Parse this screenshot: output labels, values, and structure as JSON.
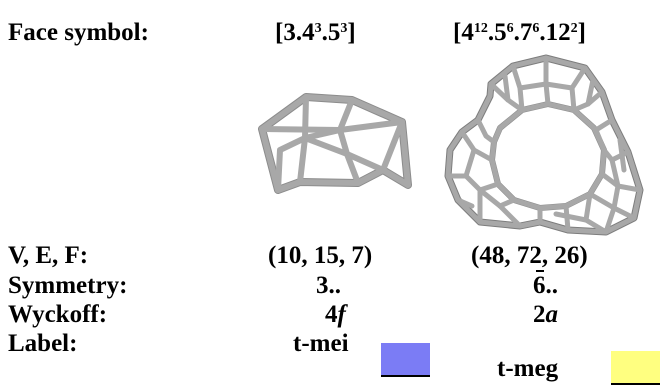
{
  "rows": {
    "face": {
      "label": "Face symbol:",
      "mei": {
        "base": "[3.4",
        "e1": "3",
        "m1": ".5",
        "e2": "3",
        "tail": "]"
      },
      "meg": {
        "base": "[4",
        "e1": "12",
        "m1": ".5",
        "e2": "6",
        "m2": ".7",
        "e3": "6",
        "m3": ".12",
        "e4": "2",
        "tail": "]"
      }
    },
    "vef": {
      "label": "V, E, F:",
      "mei": "(10, 15, 7)",
      "meg": "(48, 72, 26)"
    },
    "symmetry": {
      "label": "Symmetry:",
      "mei": "3..",
      "meg_digit": "6",
      "meg_tail": ".."
    },
    "wyckoff": {
      "label": "Wyckoff:",
      "mei_num": "4",
      "mei_letter": "f",
      "meg_num": "2",
      "meg_letter": "a"
    },
    "label": {
      "label": "Label:",
      "mei": "t-mei",
      "meg": "t-meg",
      "mei_color": "#7b7cf5",
      "meg_color": "#ffff80"
    }
  },
  "images": {
    "mei": {
      "name": "t-mei-tile-image",
      "stroke": "#a9a9a9"
    },
    "meg": {
      "name": "t-meg-tile-image",
      "stroke": "#a9a9a9"
    }
  }
}
